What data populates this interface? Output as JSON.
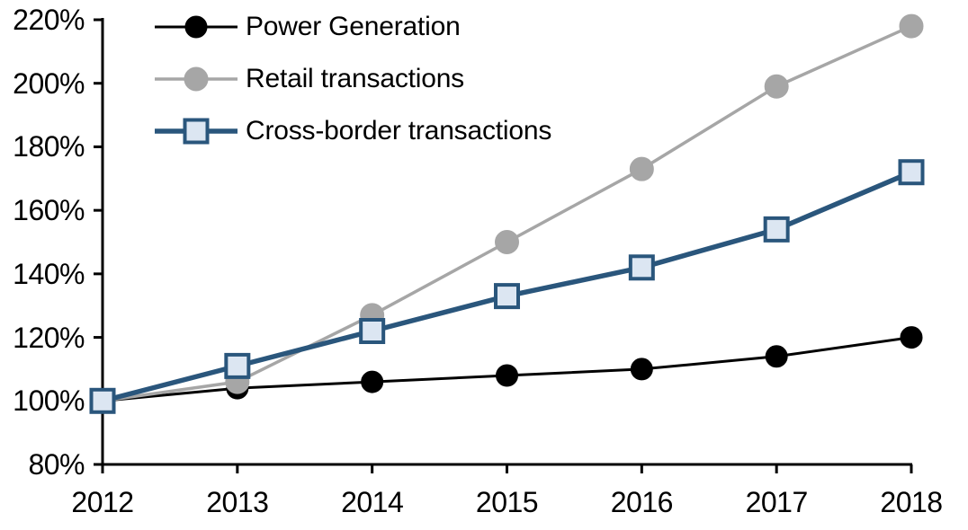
{
  "chart_data": {
    "type": "line",
    "title": "",
    "xlabel": "",
    "ylabel": "",
    "categories": [
      "2012",
      "2013",
      "2014",
      "2015",
      "2016",
      "2017",
      "2018"
    ],
    "x_values": [
      2012,
      2013,
      2014,
      2015,
      2016,
      2017,
      2018
    ],
    "series": [
      {
        "name": "Power Generation",
        "values": [
          100,
          104,
          106,
          108,
          110,
          114,
          120
        ],
        "line_color": "#000000",
        "line_width": 3,
        "marker": "circle",
        "marker_fill": "#000000",
        "marker_stroke": "#000000",
        "marker_size": 24
      },
      {
        "name": "Retail transactions",
        "values": [
          100,
          106,
          127,
          150,
          173,
          199,
          218
        ],
        "line_color": "#A6A6A6",
        "line_width": 3.5,
        "marker": "circle",
        "marker_fill": "#A6A6A6",
        "marker_stroke": "#A6A6A6",
        "marker_size": 26
      },
      {
        "name": "Cross-border transactions",
        "values": [
          100,
          111,
          122,
          133,
          142,
          154,
          172
        ],
        "line_color": "#2A567C",
        "line_width": 5.5,
        "marker": "square",
        "marker_fill": "#DCE6F2",
        "marker_stroke": "#2A567C",
        "marker_size": 25
      }
    ],
    "y_tick_labels": [
      "80%",
      "100%",
      "120%",
      "140%",
      "160%",
      "180%",
      "200%",
      "220%"
    ],
    "y_tick_values": [
      80,
      100,
      120,
      140,
      160,
      180,
      200,
      220
    ],
    "ylim": [
      80,
      220
    ],
    "unit": "%",
    "grid": false,
    "legend_position": "top-left",
    "axis_color": "#000000",
    "background_color": "#FFFFFF"
  }
}
